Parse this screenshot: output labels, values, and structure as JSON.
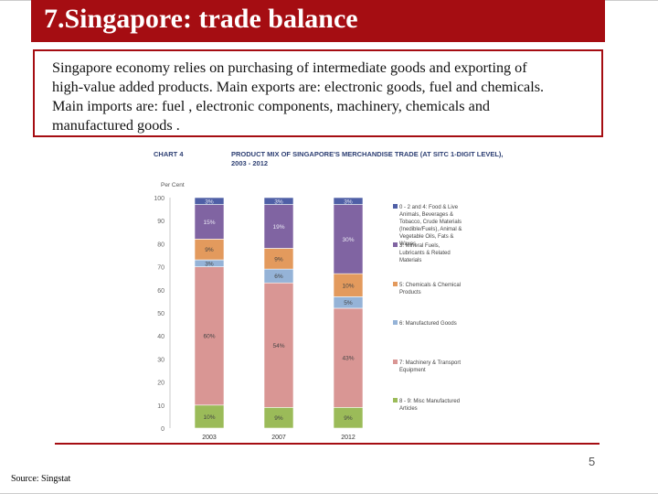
{
  "slide": {
    "title": "7.Singapore: trade balance",
    "body_lines": [
      "Singapore economy relies on purchasing of intermediate goods and exporting of",
      "high-value added products. Main exports are: electronic goods, fuel and chemicals.",
      "Main imports are: fuel , electronic components, machinery, chemicals and",
      "manufactured goods ."
    ],
    "page_number": "5",
    "source": "Source: Singstat"
  },
  "chart_data": {
    "type": "bar",
    "stacked": true,
    "title": "CHART 4    PRODUCT MIX OF SINGAPORE'S MERCHANDISE TRADE (AT SITC 1-DIGIT LEVEL), 2003 - 2012",
    "ylabel": "Per Cent",
    "ylim": [
      0,
      100
    ],
    "yticks": [
      "0",
      "10",
      "20",
      "30",
      "40",
      "50",
      "60",
      "70",
      "80",
      "90",
      "100"
    ],
    "categories": [
      "2003",
      "2007",
      "2012"
    ],
    "series": [
      {
        "name": "8 - 9: Misc Manufactured Articles",
        "color": "#9bbb59",
        "values": [
          10,
          9,
          9
        ],
        "labels": [
          "10%",
          "9%",
          "9%"
        ]
      },
      {
        "name": "7: Machinery & Transport Equipment",
        "color": "#d99694",
        "values": [
          60,
          54,
          43
        ],
        "labels": [
          "60%",
          "54%",
          "43%"
        ]
      },
      {
        "name": "6: Manufactured Goods",
        "color": "#95b3d7",
        "values": [
          3,
          6,
          5
        ],
        "labels": [
          "3%",
          "6%",
          "5%"
        ]
      },
      {
        "name": "5: Chemicals & Chemical Products",
        "color": "#e39a5d",
        "values": [
          9,
          9,
          10
        ],
        "labels": [
          "9%",
          "9%",
          "10%"
        ]
      },
      {
        "name": "3: Mineral Fuels, Lubricants & Related Materials",
        "color": "#8064a2",
        "values": [
          15,
          19,
          30
        ],
        "labels": [
          "15%",
          "19%",
          "30%"
        ]
      },
      {
        "name": "0 - 2 and 4: Food & Live Animals, Beverages & Tobacco, Crude Materials (Inedible/Fuels), Animal & Vegetable Oils, Fats & Waxes",
        "color": "#4f5fa6",
        "values": [
          3,
          3,
          3
        ],
        "labels": [
          "3%",
          "3%",
          "3%"
        ]
      }
    ]
  }
}
